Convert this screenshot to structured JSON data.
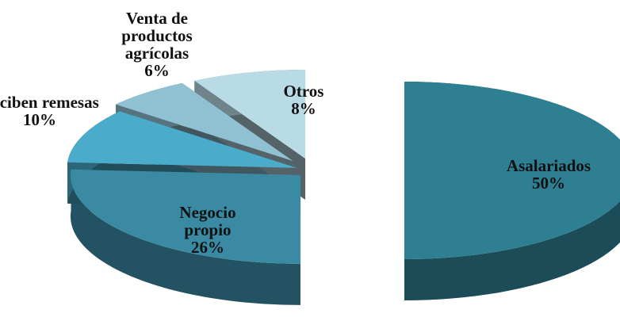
{
  "chart_data": {
    "type": "pie",
    "categories": [
      "Asalariados",
      "Negocio propio",
      "Reciben remesas",
      "Venta de productos agrícolas",
      "Otros"
    ],
    "values": [
      50,
      26,
      10,
      6,
      8
    ],
    "value_labels": [
      "50%",
      "26%",
      "10%",
      "6%",
      "8%"
    ],
    "colors": [
      "#2f7f93",
      "#3b8aa4",
      "#4aabca",
      "#8fc1d3",
      "#b9dbe6"
    ]
  }
}
